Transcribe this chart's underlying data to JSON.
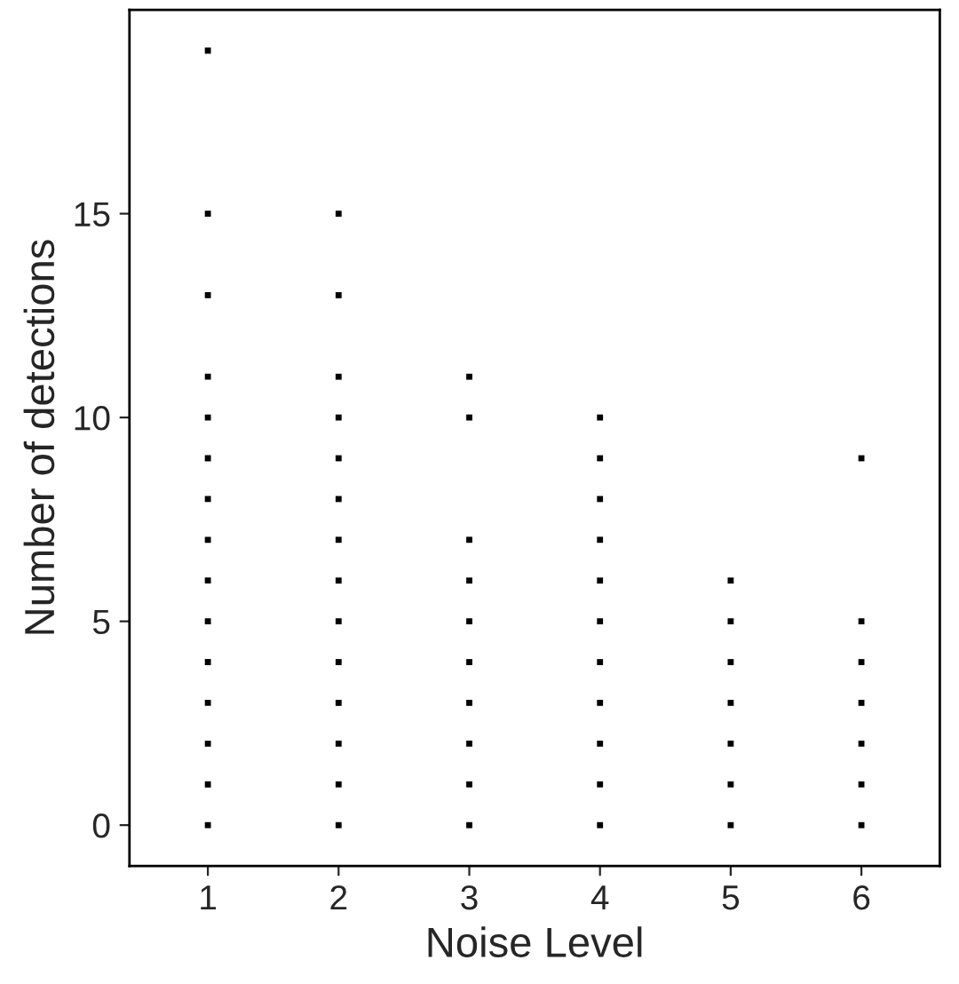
{
  "chart_data": {
    "type": "scatter",
    "xlabel": "Noise Level",
    "ylabel": "Number of detections",
    "categories": [
      "1",
      "2",
      "3",
      "4",
      "5",
      "6"
    ],
    "series": [
      {
        "color": "#000000",
        "x": [
          "1",
          "1",
          "1",
          "1",
          "1",
          "1",
          "1",
          "1",
          "1",
          "1",
          "1",
          "1",
          "1",
          "1",
          "1"
        ],
        "values": [
          0,
          1,
          2,
          3,
          4,
          5,
          6,
          7,
          8,
          9,
          10,
          11,
          13,
          15,
          19
        ]
      },
      {
        "color": "#000000",
        "x": [
          "2",
          "2",
          "2",
          "2",
          "2",
          "2",
          "2",
          "2",
          "2",
          "2",
          "2",
          "2",
          "2",
          "2"
        ],
        "values": [
          0,
          1,
          2,
          3,
          4,
          5,
          6,
          7,
          8,
          9,
          10,
          11,
          13,
          15
        ]
      },
      {
        "color": "#000000",
        "x": [
          "3",
          "3",
          "3",
          "3",
          "3",
          "3",
          "3",
          "3",
          "3",
          "3"
        ],
        "values": [
          0,
          1,
          2,
          3,
          4,
          5,
          6,
          7,
          10,
          11
        ]
      },
      {
        "color": "#000000",
        "x": [
          "4",
          "4",
          "4",
          "4",
          "4",
          "4",
          "4",
          "4",
          "4",
          "4",
          "4"
        ],
        "values": [
          0,
          1,
          2,
          3,
          4,
          5,
          6,
          7,
          8,
          9,
          10
        ]
      },
      {
        "color": "#000000",
        "x": [
          "5",
          "5",
          "5",
          "5",
          "5",
          "5",
          "5"
        ],
        "values": [
          0,
          1,
          2,
          3,
          4,
          5,
          6
        ]
      },
      {
        "color": "#000000",
        "x": [
          "6",
          "6",
          "6",
          "6",
          "6",
          "6",
          "6"
        ],
        "values": [
          0,
          1,
          2,
          3,
          4,
          5,
          9
        ]
      }
    ],
    "ylim": [
      -1,
      20
    ],
    "yticks": [
      0,
      5,
      10,
      15
    ],
    "grid": false,
    "legend": false,
    "marker": "square"
  }
}
